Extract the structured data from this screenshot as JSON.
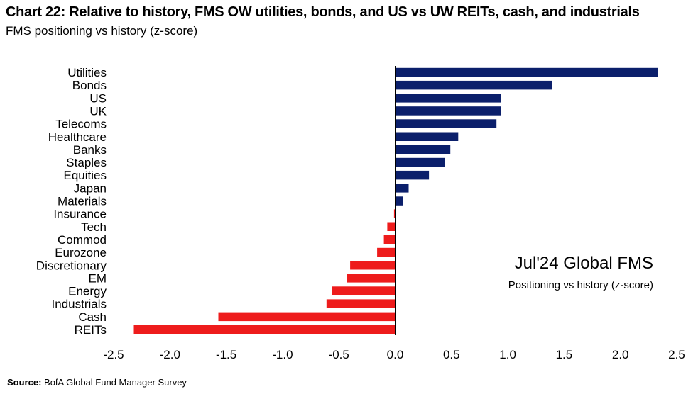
{
  "title": "Chart 22: Relative to history, FMS OW utilities, bonds, and US vs UW REITs, cash, and industrials",
  "subtitle": "FMS positioning vs history (z-score)",
  "annotation": {
    "title": "Jul'24 Global FMS",
    "subtitle": "Positioning vs history (z-score)"
  },
  "source": {
    "label": "Source:",
    "text": "BofA Global Fund Manager Survey"
  },
  "colors": {
    "positive": "#0b1f6b",
    "negative": "#ee1c1c",
    "axis": "#000000"
  },
  "chart_data": {
    "type": "bar",
    "orientation": "horizontal",
    "categories": [
      "Utilities",
      "Bonds",
      "US",
      "UK",
      "Telecoms",
      "Healthcare",
      "Banks",
      "Staples",
      "Equities",
      "Japan",
      "Materials",
      "Insurance",
      "Tech",
      "Commod",
      "Eurozone",
      "Discretionary",
      "EM",
      "Energy",
      "Industrials",
      "Cash",
      "REITs"
    ],
    "values": [
      2.33,
      1.39,
      0.94,
      0.94,
      0.9,
      0.56,
      0.49,
      0.44,
      0.3,
      0.12,
      0.07,
      -0.01,
      -0.07,
      -0.1,
      -0.16,
      -0.4,
      -0.43,
      -0.56,
      -0.61,
      -1.57,
      -2.32
    ],
    "xlim": [
      -2.5,
      2.5
    ],
    "xticks": [
      "-2.5",
      "-2.0",
      "-1.5",
      "-1.0",
      "-0.5",
      "0.0",
      "0.5",
      "1.0",
      "1.5",
      "2.0",
      "2.5"
    ],
    "grid": false,
    "legend": "none"
  }
}
